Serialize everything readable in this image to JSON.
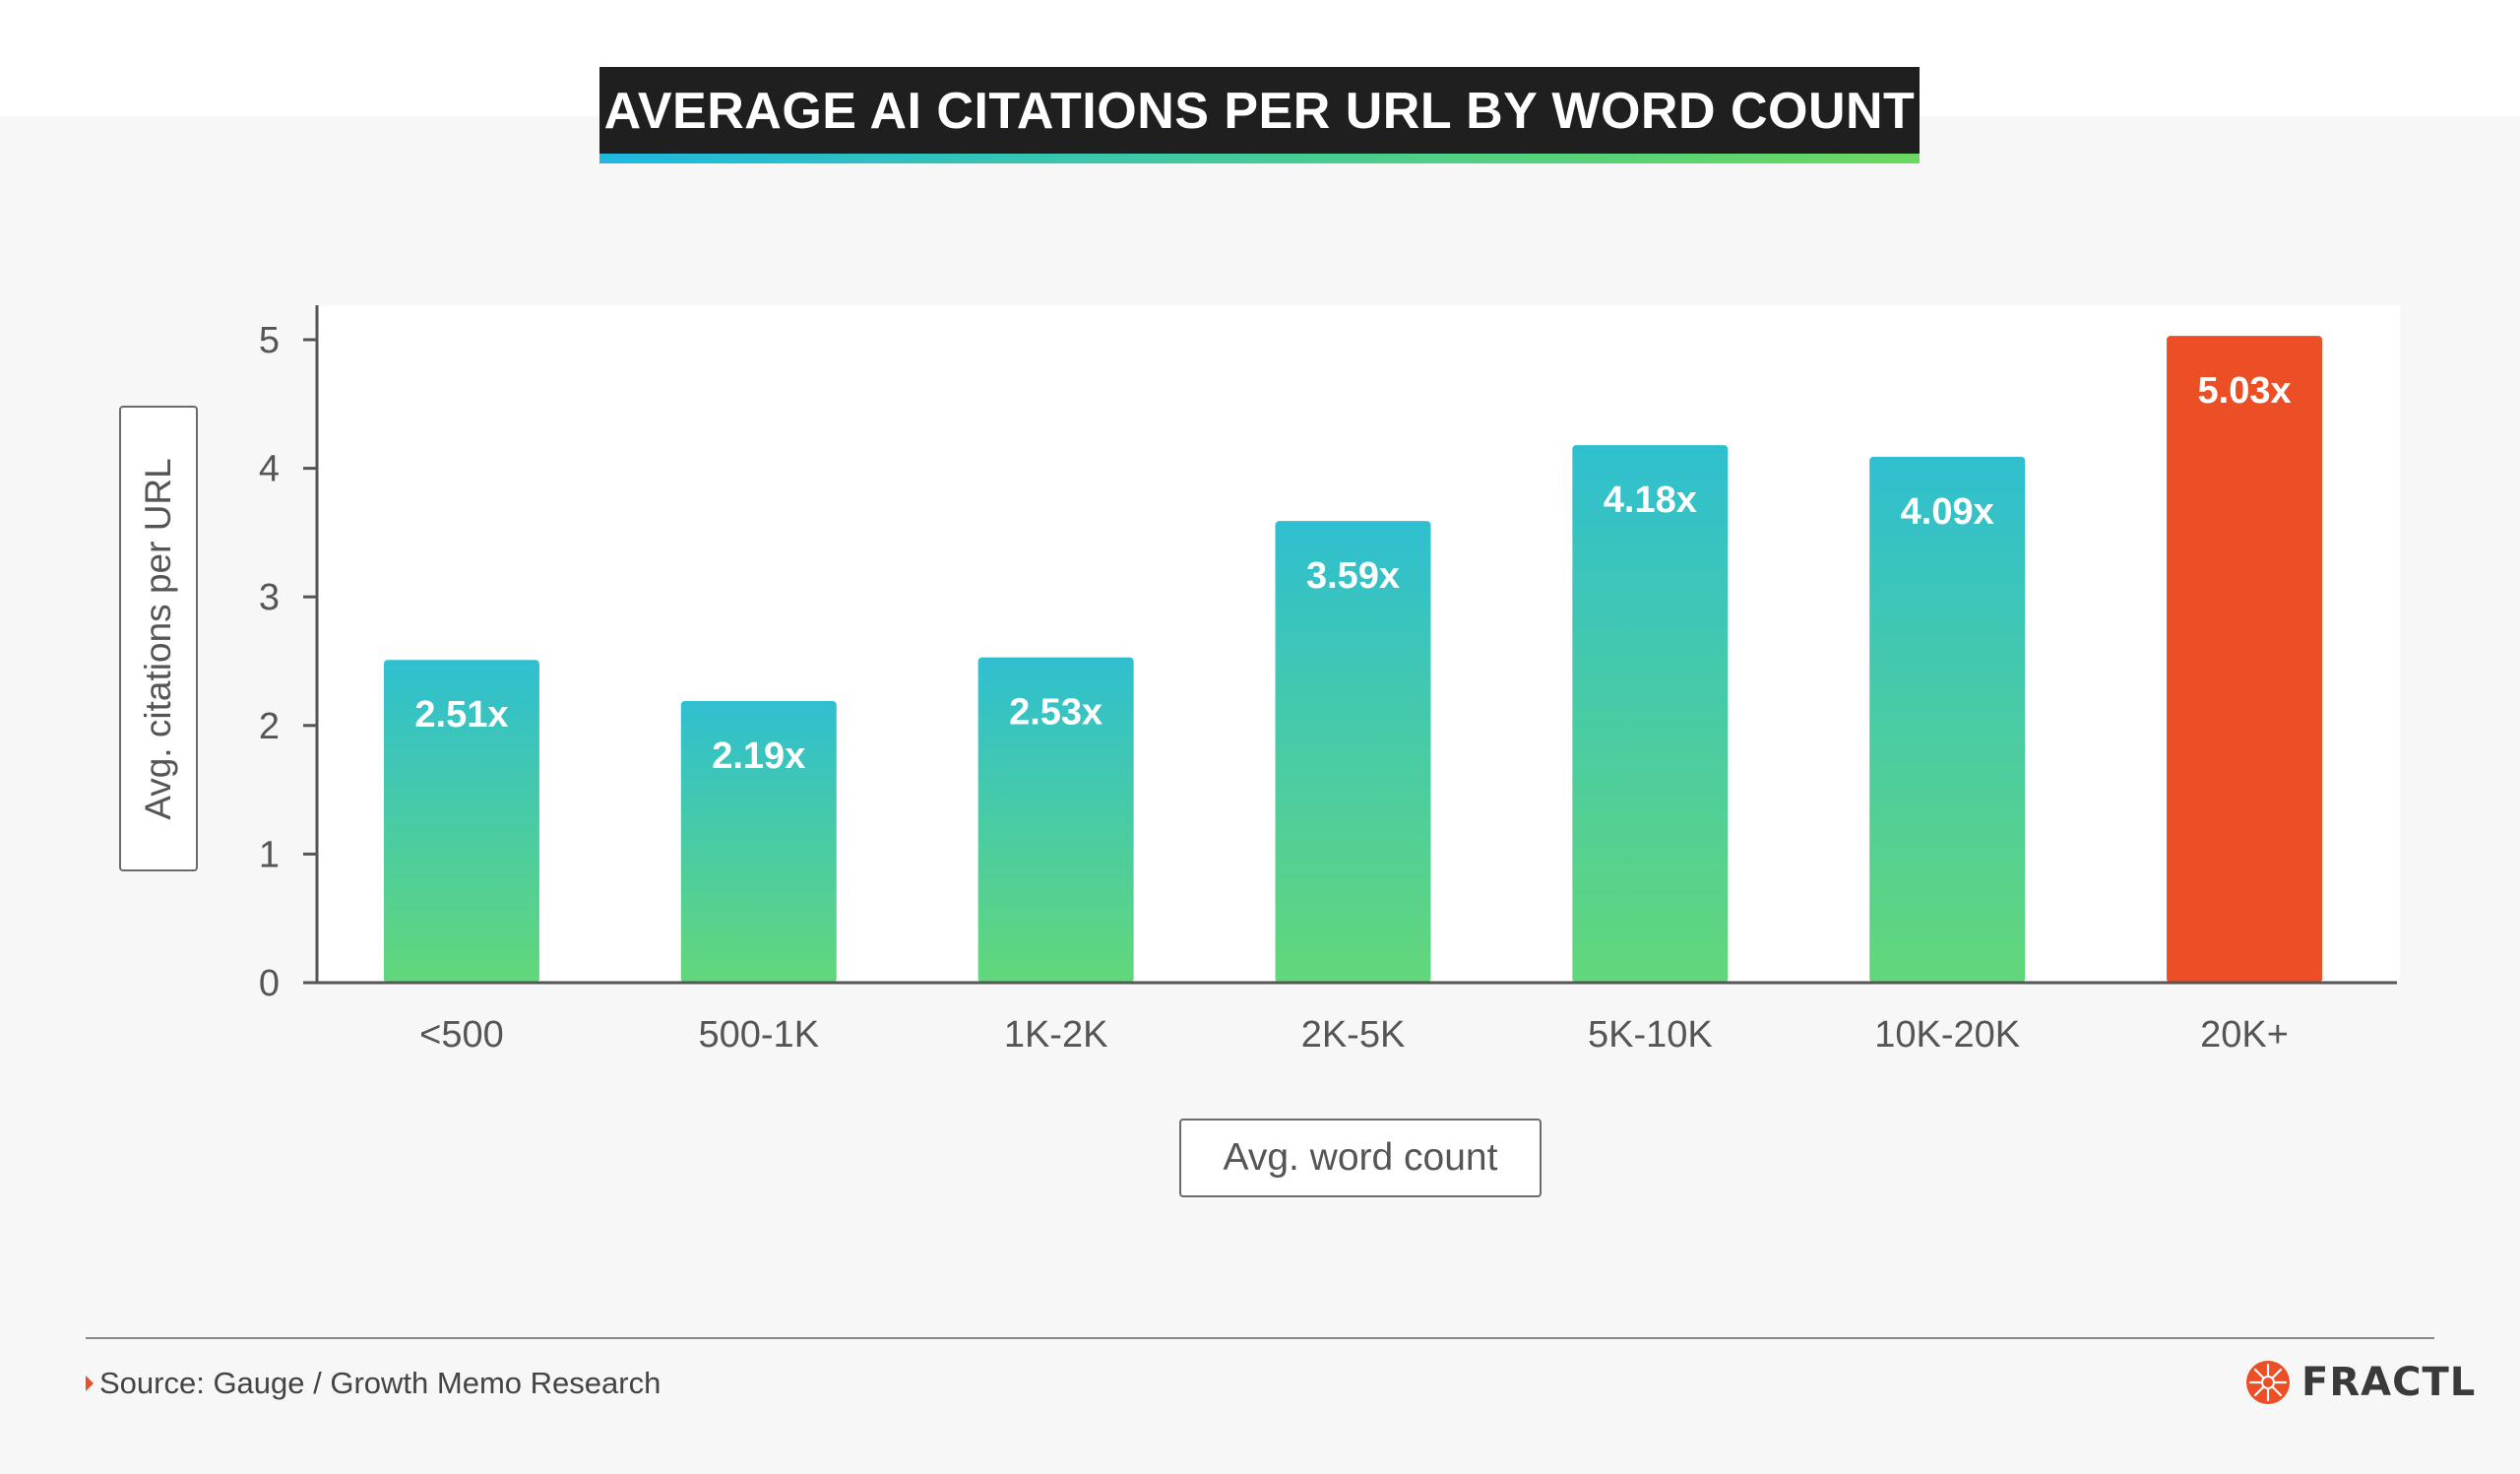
{
  "title": "AVERAGE AI CITATIONS PER URL BY WORD COUNT",
  "source": "Source: Gauge / Growth Memo Research",
  "logo": "FRACTL",
  "colors": {
    "bar_gradient_top": "#2fbfd0",
    "bar_gradient_bottom": "#63d77a",
    "highlight": "#ec4f26",
    "title_bg": "#1f1f1f"
  },
  "chart_data": {
    "type": "bar",
    "title": "AVERAGE AI CITATIONS PER URL BY WORD COUNT",
    "xlabel": "Avg. word count",
    "ylabel": "Avg. citations per URL",
    "categories": [
      "<500",
      "500-1K",
      "1K-2K",
      "2K-5K",
      "5K-10K",
      "10K-20K",
      "20K+"
    ],
    "values": [
      2.51,
      2.19,
      2.53,
      3.59,
      4.18,
      4.09,
      5.03
    ],
    "data_labels": [
      "2.51x",
      "2.19x",
      "2.53x",
      "3.59x",
      "4.18x",
      "4.09x",
      "5.03x"
    ],
    "highlight_index": 6,
    "ylim": [
      0,
      5.35
    ],
    "yticks": [
      0,
      1,
      2,
      3,
      4,
      5
    ],
    "grid": false,
    "legend": "none"
  }
}
